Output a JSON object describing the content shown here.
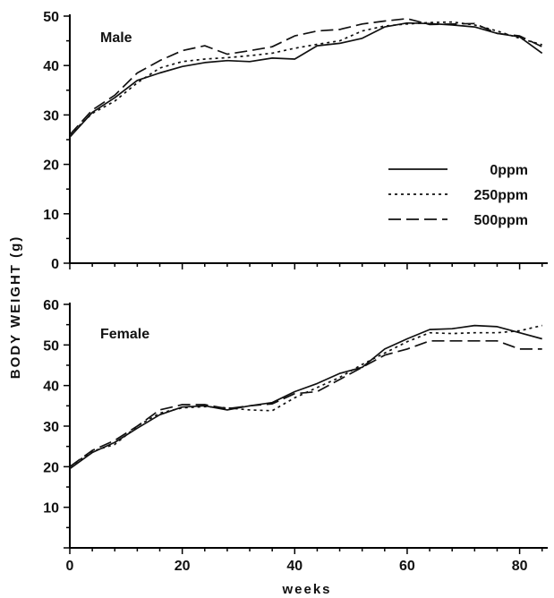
{
  "ylabel": "BODY WEIGHT (g)",
  "xlabel": "weeks",
  "legend": [
    {
      "label": "0ppm",
      "dash": "solid"
    },
    {
      "label": "250ppm",
      "dash": "dotted"
    },
    {
      "label": "500ppm",
      "dash": "dashed"
    }
  ],
  "chart_data": [
    {
      "type": "line",
      "panel_label": "Male",
      "xlim": [
        0,
        85
      ],
      "ylim": [
        0,
        50
      ],
      "x_ticks": [
        0,
        20,
        40,
        60,
        80
      ],
      "y_ticks": [
        0,
        10,
        20,
        30,
        40,
        50
      ],
      "y_tick_labels": [
        "0",
        "10",
        "20",
        "30",
        "40",
        "50"
      ],
      "series": [
        {
          "name": "0ppm",
          "dash": "solid",
          "x": [
            0,
            4,
            8,
            12,
            16,
            20,
            24,
            28,
            32,
            36,
            40,
            44,
            48,
            52,
            56,
            60,
            64,
            68,
            72,
            76,
            80,
            84
          ],
          "y": [
            25.5,
            30.5,
            33.5,
            37,
            38.5,
            39.8,
            40.6,
            41,
            40.8,
            41.5,
            41.3,
            44,
            44.5,
            45.5,
            47.8,
            48.6,
            48.5,
            48.2,
            47.8,
            46.5,
            45.8,
            42.5
          ]
        },
        {
          "name": "250ppm",
          "dash": "dotted",
          "x": [
            0,
            4,
            8,
            12,
            16,
            20,
            24,
            28,
            32,
            36,
            40,
            44,
            48,
            52,
            56,
            60,
            64,
            68,
            72,
            76,
            80,
            84
          ],
          "y": [
            26,
            30.3,
            32.8,
            36.5,
            39.5,
            40.8,
            41.3,
            41.6,
            42,
            42.5,
            43.5,
            44.3,
            45,
            47,
            48,
            48.4,
            48.7,
            48.8,
            48.2,
            47,
            45.5,
            44.2
          ]
        },
        {
          "name": "500ppm",
          "dash": "dashed",
          "x": [
            0,
            4,
            8,
            12,
            16,
            20,
            24,
            28,
            32,
            36,
            40,
            44,
            48,
            52,
            56,
            60,
            64,
            68,
            72,
            76,
            80,
            84
          ],
          "y": [
            26,
            31,
            34,
            38.5,
            41,
            43,
            44,
            42.3,
            43,
            43.8,
            46,
            47,
            47.3,
            48.4,
            49,
            49.5,
            48.3,
            48.4,
            48.5,
            46.5,
            46,
            43.8
          ]
        }
      ]
    },
    {
      "type": "line",
      "panel_label": "Female",
      "xlim": [
        0,
        85
      ],
      "ylim": [
        0,
        60
      ],
      "x_ticks": [
        0,
        20,
        40,
        60,
        80
      ],
      "x_tick_labels": [
        "0",
        "20",
        "40",
        "60",
        "80"
      ],
      "y_ticks": [
        10,
        20,
        30,
        40,
        50,
        60
      ],
      "y_tick_labels": [
        "10",
        "20",
        "30",
        "40",
        "50",
        "60"
      ],
      "series": [
        {
          "name": "0ppm",
          "dash": "solid",
          "x": [
            0,
            4,
            8,
            12,
            16,
            20,
            24,
            28,
            32,
            36,
            40,
            44,
            48,
            52,
            56,
            60,
            64,
            68,
            72,
            76,
            80,
            84
          ],
          "y": [
            19.5,
            23.5,
            26,
            29.5,
            32.8,
            34.7,
            35,
            34,
            35,
            35.8,
            38.5,
            40.5,
            43,
            44.5,
            49,
            51.5,
            53.8,
            54,
            54.8,
            54.5,
            53,
            51.5
          ]
        },
        {
          "name": "250ppm",
          "dash": "dotted",
          "x": [
            0,
            4,
            8,
            12,
            16,
            20,
            24,
            28,
            32,
            36,
            40,
            44,
            48,
            52,
            56,
            60,
            64,
            68,
            72,
            76,
            80,
            84
          ],
          "y": [
            20,
            23.8,
            25.5,
            30,
            33.2,
            34.5,
            34.8,
            34.5,
            34,
            33.8,
            37,
            39.5,
            42,
            45.2,
            48,
            50.8,
            53,
            52.8,
            53,
            53,
            53.5,
            54.8
          ]
        },
        {
          "name": "500ppm",
          "dash": "dashed",
          "x": [
            0,
            4,
            8,
            12,
            16,
            20,
            24,
            28,
            32,
            36,
            40,
            44,
            48,
            52,
            56,
            60,
            64,
            68,
            72,
            76,
            80,
            84
          ],
          "y": [
            20,
            24,
            26.5,
            30,
            34,
            35.3,
            35.3,
            34.3,
            35,
            35.5,
            38,
            38.5,
            41.5,
            44.5,
            47.5,
            49,
            51,
            51,
            51,
            51,
            49,
            49
          ]
        }
      ]
    }
  ]
}
